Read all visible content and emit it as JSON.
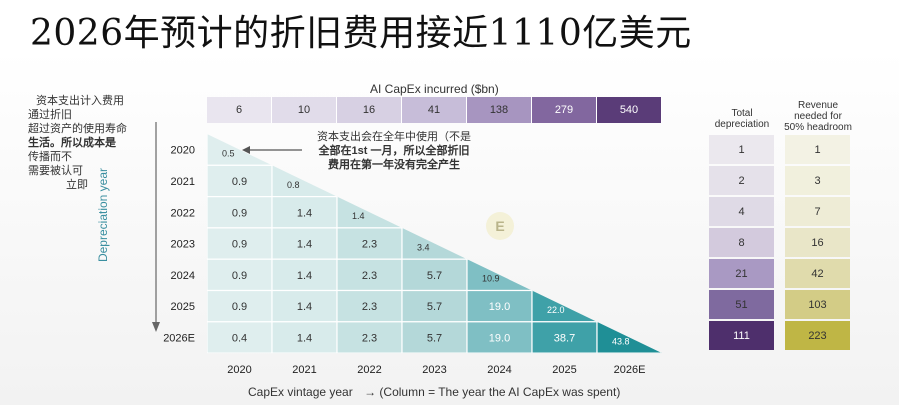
{
  "page": {
    "title": "2026年预计的折旧费用接近1110亿美元"
  },
  "notes": {
    "left_lines": [
      "资本支出计入费用",
      "通过折旧",
      "超过资产的使用寿命",
      "生活。所以成本是",
      "传播而不",
      "需要被认可",
      "立即"
    ],
    "annotation_lines": [
      "资本支出会在全年中使用（不是",
      "全部在1st 一月，所以全部折旧",
      "费用在第一年没有完全产生"
    ]
  },
  "capex": {
    "title": "AI CapEx incurred ($bn)",
    "values": [
      "6",
      "10",
      "16",
      "41",
      "138",
      "279",
      "540"
    ],
    "colors": [
      "#e9e5ef",
      "#e1dcea",
      "#d7d0e3",
      "#c7bdd9",
      "#a795c0",
      "#82679f",
      "#5a3c78"
    ]
  },
  "side": {
    "total_header": "Total depreciation",
    "revenue_header": "Revenue needed for 50% headroom",
    "total_values": [
      "1",
      "2",
      "4",
      "8",
      "21",
      "51",
      "111"
    ],
    "total_colors": [
      "#ebe8ee",
      "#e5e1ea",
      "#dfdae6",
      "#d3cadd",
      "#a999c3",
      "#7f6a9f",
      "#4e2f6c"
    ],
    "revenue_values": [
      "1",
      "3",
      "7",
      "16",
      "42",
      "103",
      "223"
    ],
    "revenue_colors": [
      "#f3f2e4",
      "#f1f0dd",
      "#eeecd6",
      "#e9e6c8",
      "#e0dbac",
      "#d3cc86",
      "#bfb645"
    ]
  },
  "chart_data": {
    "type": "heatmap",
    "xlabel": "CapEx vintage year",
    "xlabel_note": "→  (Column = The year the AI CapEx was spent)",
    "ylabel": "Depreciation year",
    "x": [
      "2020",
      "2021",
      "2022",
      "2023",
      "2024",
      "2025",
      "2026E"
    ],
    "y": [
      "2020",
      "2021",
      "2022",
      "2023",
      "2024",
      "2025",
      "2026E"
    ],
    "values": [
      [
        "0.5"
      ],
      [
        "0.9",
        "0.8"
      ],
      [
        "0.9",
        "1.4",
        "1.4"
      ],
      [
        "0.9",
        "1.4",
        "2.3",
        "3.4"
      ],
      [
        "0.9",
        "1.4",
        "2.3",
        "5.7",
        "10.9"
      ],
      [
        "0.9",
        "1.4",
        "2.3",
        "5.7",
        "19.0",
        "22.0"
      ],
      [
        "0.4",
        "1.4",
        "2.3",
        "5.7",
        "19.0",
        "38.7",
        "43.8"
      ]
    ],
    "colors": [
      "#dfeeee",
      "#d8ebeb",
      "#c6e2e2",
      "#b4d8d9",
      "#7fbfc4",
      "#3fa1a8",
      "#1f8f96"
    ]
  }
}
